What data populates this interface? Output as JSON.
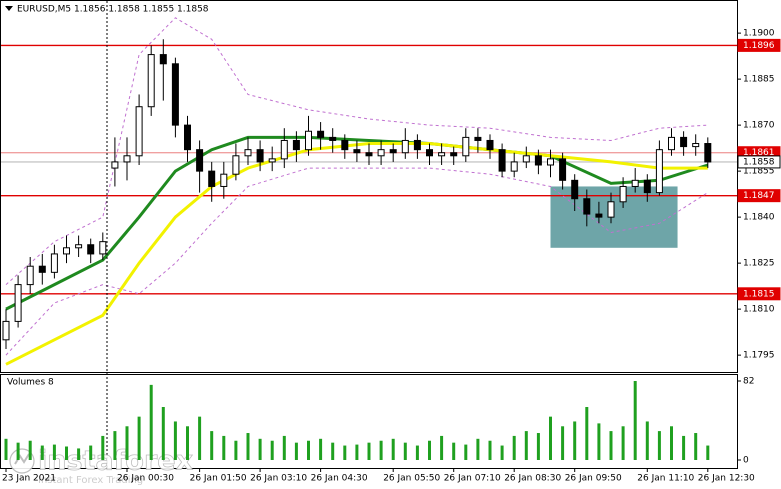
{
  "chart_data": {
    "type": "candlestick",
    "title": "EURUSD,M5  1.1856 1.1858 1.1855 1.1858",
    "categories": [
      "23 Jan 2021",
      null,
      null,
      null,
      null,
      null,
      null,
      null,
      null,
      null,
      "26 Jan 00:30",
      null,
      null,
      null,
      null,
      null,
      "26 Jan 01:50",
      null,
      null,
      null,
      null,
      "26 Jan 03:10",
      null,
      null,
      null,
      null,
      "26 Jan 04:30",
      null,
      null,
      null,
      null,
      null,
      "26 Jan 05:50",
      null,
      null,
      null,
      null,
      "26 Jan 07:10",
      null,
      null,
      null,
      null,
      "26 Jan 08:30",
      null,
      null,
      null,
      null,
      "26 Jan 09:50",
      null,
      null,
      null,
      null,
      null,
      "26 Jan 11:10",
      null,
      null,
      null,
      null,
      "26 Jan 12:30"
    ],
    "open": [
      1.18,
      1.1806,
      1.1818,
      1.1824,
      1.1822,
      1.1828,
      1.183,
      1.1831,
      1.1828,
      1.1856,
      1.1858,
      1.186,
      1.1876,
      1.1893,
      1.189,
      1.187,
      1.1862,
      1.1855,
      1.185,
      1.1854,
      1.186,
      1.1862,
      1.1858,
      1.1859,
      1.1865,
      1.1862,
      1.1868,
      1.1866,
      1.1865,
      1.1862,
      1.1861,
      1.186,
      1.1862,
      1.1861,
      1.1865,
      1.1862,
      1.186,
      1.1861,
      1.186,
      1.1866,
      1.1865,
      1.1862,
      1.1855,
      1.1858,
      1.186,
      1.1857,
      1.1859,
      1.1852,
      1.1846,
      1.1841,
      1.184,
      1.1845,
      1.185,
      1.1852,
      1.1848,
      1.1862,
      1.1866,
      1.1863,
      1.1864
    ],
    "high": [
      1.181,
      1.1821,
      1.1827,
      1.1828,
      1.1831,
      1.1834,
      1.1834,
      1.1833,
      1.1835,
      1.1866,
      1.1866,
      1.188,
      1.1896,
      1.1898,
      1.1892,
      1.1873,
      1.1865,
      1.1858,
      1.1858,
      1.1864,
      1.1866,
      1.1865,
      1.1863,
      1.1869,
      1.1868,
      1.1873,
      1.1871,
      1.1869,
      1.1867,
      1.1865,
      1.1864,
      1.1865,
      1.1864,
      1.1869,
      1.1867,
      1.1864,
      1.1864,
      1.1863,
      1.1869,
      1.1869,
      1.1867,
      1.1864,
      1.1861,
      1.1863,
      1.1862,
      1.1862,
      1.1861,
      1.1854,
      1.1849,
      1.1845,
      1.1848,
      1.1853,
      1.1856,
      1.1854,
      1.1865,
      1.1869,
      1.1868,
      1.1867,
      1.1866
    ],
    "low": [
      1.1797,
      1.1804,
      1.1815,
      1.1818,
      1.182,
      1.1825,
      1.1827,
      1.1825,
      1.1826,
      1.185,
      1.1852,
      1.1857,
      1.1873,
      1.1878,
      1.1866,
      1.1858,
      1.1848,
      1.1845,
      1.1846,
      1.1852,
      1.1857,
      1.1855,
      1.1855,
      1.1856,
      1.1858,
      1.186,
      1.1862,
      1.1861,
      1.1859,
      1.1858,
      1.1857,
      1.1857,
      1.1858,
      1.1859,
      1.1859,
      1.1857,
      1.1857,
      1.1857,
      1.1858,
      1.1861,
      1.1859,
      1.1853,
      1.1853,
      1.1856,
      1.1854,
      1.1853,
      1.1849,
      1.1842,
      1.1837,
      1.1838,
      1.1838,
      1.1843,
      1.1848,
      1.1845,
      1.1847,
      1.186,
      1.186,
      1.186,
      1.1856
    ],
    "close": [
      1.1806,
      1.1818,
      1.1824,
      1.1822,
      1.1828,
      1.183,
      1.1831,
      1.1828,
      1.1832,
      1.1858,
      1.186,
      1.1876,
      1.1893,
      1.189,
      1.187,
      1.1862,
      1.1855,
      1.185,
      1.1854,
      1.186,
      1.1862,
      1.1858,
      1.1859,
      1.1865,
      1.1862,
      1.1868,
      1.1866,
      1.1865,
      1.1862,
      1.1861,
      1.186,
      1.1862,
      1.1861,
      1.1865,
      1.1862,
      1.186,
      1.1861,
      1.186,
      1.1866,
      1.1865,
      1.1862,
      1.1855,
      1.1858,
      1.186,
      1.1857,
      1.1859,
      1.1852,
      1.1846,
      1.1841,
      1.184,
      1.1845,
      1.185,
      1.1852,
      1.1848,
      1.1862,
      1.1866,
      1.1863,
      1.1864,
      1.1858
    ],
    "lines": [
      {
        "color": "#1f8a1f",
        "width": 3,
        "dashed": false,
        "x": [
          0,
          4,
          8,
          11,
          14,
          17,
          20,
          25,
          30,
          35,
          40,
          45,
          50,
          54,
          58
        ],
        "values": [
          1.181,
          1.1818,
          1.1826,
          1.184,
          1.1855,
          1.1862,
          1.1866,
          1.1866,
          1.1865,
          1.1864,
          1.1862,
          1.186,
          1.1851,
          1.1852,
          1.1857
        ]
      },
      {
        "color": "#f2f200",
        "width": 3,
        "dashed": false,
        "x": [
          0,
          4,
          8,
          11,
          14,
          17,
          20,
          25,
          30,
          35,
          40,
          45,
          50,
          54,
          58
        ],
        "values": [
          1.1792,
          1.18,
          1.1808,
          1.1825,
          1.184,
          1.185,
          1.1856,
          1.1862,
          1.1864,
          1.1864,
          1.1862,
          1.186,
          1.1858,
          1.1856,
          1.1856
        ]
      },
      {
        "color": "#c070d0",
        "width": 1,
        "dashed": true,
        "x": [
          0,
          4,
          8,
          11,
          14,
          17,
          20,
          25,
          30,
          35,
          40,
          45,
          50,
          54,
          58
        ],
        "values": [
          1.1818,
          1.1832,
          1.184,
          1.1893,
          1.1905,
          1.1898,
          1.188,
          1.1875,
          1.1872,
          1.187,
          1.1869,
          1.1866,
          1.1865,
          1.1869,
          1.187
        ]
      },
      {
        "color": "#c070d0",
        "width": 1,
        "dashed": true,
        "x": [
          0,
          4,
          8,
          11,
          14,
          17,
          20,
          25,
          30,
          35,
          40,
          45,
          50,
          54,
          58
        ],
        "values": [
          1.1795,
          1.1812,
          1.1818,
          1.1815,
          1.1825,
          1.1838,
          1.185,
          1.1856,
          1.1856,
          1.1856,
          1.1854,
          1.185,
          1.1835,
          1.1838,
          1.1848
        ]
      }
    ],
    "levels": [
      {
        "value": 1.1896,
        "color": "#e00000",
        "label_fill": "#e00000",
        "label_color": "#ffffff"
      },
      {
        "value": 1.1861,
        "color": "#f0a0a0",
        "label_fill": "#e00000",
        "label_color": "#ffffff"
      },
      {
        "value": 1.1858,
        "color": "#c8c8c8",
        "label_fill": "#ffffff",
        "label_color": "#000000"
      },
      {
        "value": 1.1847,
        "color": "#e00000",
        "label_fill": "#e00000",
        "label_color": "#ffffff"
      },
      {
        "value": 1.1815,
        "color": "#e00000",
        "label_fill": "#e00000",
        "label_color": "#ffffff"
      }
    ],
    "zone": {
      "from": 1.183,
      "to": 1.185,
      "x": [
        45,
        55.5
      ],
      "color": "#4a8f92"
    },
    "ylim": [
      1.17895,
      1.19108
    ],
    "yticks": [
      {
        "value": 1.19,
        "label": "1.1900"
      },
      1.1885,
      {
        "value": 1.187,
        "label": "1.1870"
      },
      1.1855,
      {
        "value": 1.184,
        "label": "1.1840"
      },
      1.1825,
      {
        "value": 1.181,
        "label": "1.1810"
      },
      1.1795
    ],
    "volume_title": "Volumes 8",
    "volume_values": [
      22,
      18,
      20,
      15,
      16,
      14,
      12,
      15,
      25,
      30,
      35,
      45,
      78,
      55,
      40,
      35,
      45,
      30,
      25,
      20,
      28,
      22,
      20,
      25,
      18,
      20,
      22,
      18,
      15,
      16,
      18,
      20,
      22,
      18,
      15,
      20,
      25,
      18,
      16,
      22,
      20,
      15,
      25,
      30,
      28,
      45,
      35,
      40,
      55,
      38,
      30,
      35,
      82,
      40,
      30,
      35,
      25,
      28,
      15
    ],
    "volume_color": "#1fa01f",
    "volume_ylim": [
      0,
      82
    ],
    "volume_yticks": [
      82,
      0
    ],
    "watermark": "instaforex",
    "watermark_tagline": "Instant Forex Trading"
  }
}
